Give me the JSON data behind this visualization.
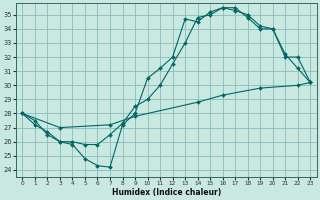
{
  "xlabel": "Humidex (Indice chaleur)",
  "bg_color": "#c8e8e0",
  "grid_color": "#88bbbb",
  "line_color": "#006666",
  "xlim": [
    -0.5,
    23.5
  ],
  "ylim": [
    23.5,
    35.8
  ],
  "yticks": [
    24,
    25,
    26,
    27,
    28,
    29,
    30,
    31,
    32,
    33,
    34,
    35
  ],
  "xticks": [
    0,
    1,
    2,
    3,
    4,
    5,
    6,
    7,
    8,
    9,
    10,
    11,
    12,
    13,
    14,
    15,
    16,
    17,
    18,
    19,
    20,
    21,
    22,
    23
  ],
  "line1_x": [
    0,
    1,
    2,
    3,
    4,
    5,
    6,
    7,
    8,
    9,
    10,
    11,
    12,
    13,
    14,
    15,
    16,
    17,
    18,
    19,
    20,
    21,
    22,
    23
  ],
  "line1_y": [
    28,
    27.2,
    26.7,
    26.0,
    25.8,
    24.8,
    24.3,
    24.2,
    27.2,
    28.0,
    30.5,
    31.2,
    32.0,
    34.7,
    34.5,
    35.2,
    35.5,
    35.3,
    35.0,
    34.2,
    34.0,
    32.2,
    31.2,
    30.2
  ],
  "line2_x": [
    0,
    1,
    2,
    3,
    4,
    5,
    6,
    7,
    8,
    9,
    10,
    11,
    12,
    13,
    14,
    15,
    16,
    17,
    18,
    19,
    20,
    21,
    22,
    23
  ],
  "line2_y": [
    28,
    27.5,
    26.5,
    26.0,
    26.0,
    25.8,
    25.8,
    26.5,
    27.3,
    28.5,
    29.0,
    30.0,
    31.5,
    33.0,
    34.8,
    35.0,
    35.5,
    35.5,
    34.8,
    34.0,
    34.0,
    32.0,
    32.0,
    30.2
  ],
  "line3_x": [
    0,
    3,
    7,
    9,
    14,
    16,
    19,
    22,
    23
  ],
  "line3_y": [
    28,
    27.0,
    27.2,
    27.8,
    28.8,
    29.3,
    29.8,
    30.0,
    30.2
  ]
}
